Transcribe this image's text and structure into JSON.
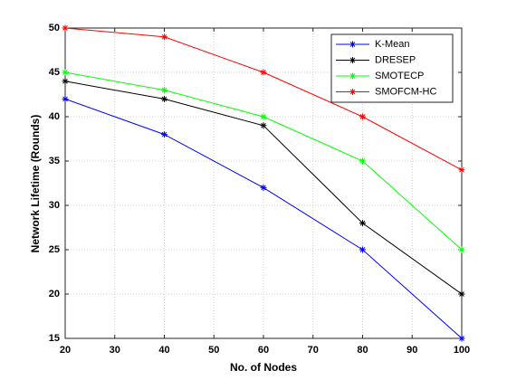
{
  "chart_data": {
    "type": "line",
    "xlabel": "No. of Nodes",
    "ylabel": "Network Lifetime (Rounds)",
    "x": [
      20,
      40,
      60,
      80,
      100
    ],
    "series": [
      {
        "name": "K-Mean",
        "color": "#0000ff",
        "values": [
          42,
          38,
          32,
          25,
          15
        ]
      },
      {
        "name": "DRESEP",
        "color": "#000000",
        "values": [
          44,
          42,
          39,
          28,
          20
        ]
      },
      {
        "name": "SMOTECP",
        "color": "#00ff00",
        "values": [
          45,
          43,
          40,
          35,
          25
        ]
      },
      {
        "name": "SMOFCM-HC",
        "color": "#ff0000",
        "values": [
          50,
          49,
          45,
          40,
          34
        ]
      }
    ],
    "xlim": [
      20,
      100
    ],
    "xticks": [
      20,
      30,
      40,
      50,
      60,
      70,
      80,
      90,
      100
    ],
    "ylim": [
      15,
      50
    ],
    "yticks": [
      15,
      20,
      25,
      30,
      35,
      40,
      45,
      50
    ],
    "grid": true,
    "legend": "northeast"
  }
}
